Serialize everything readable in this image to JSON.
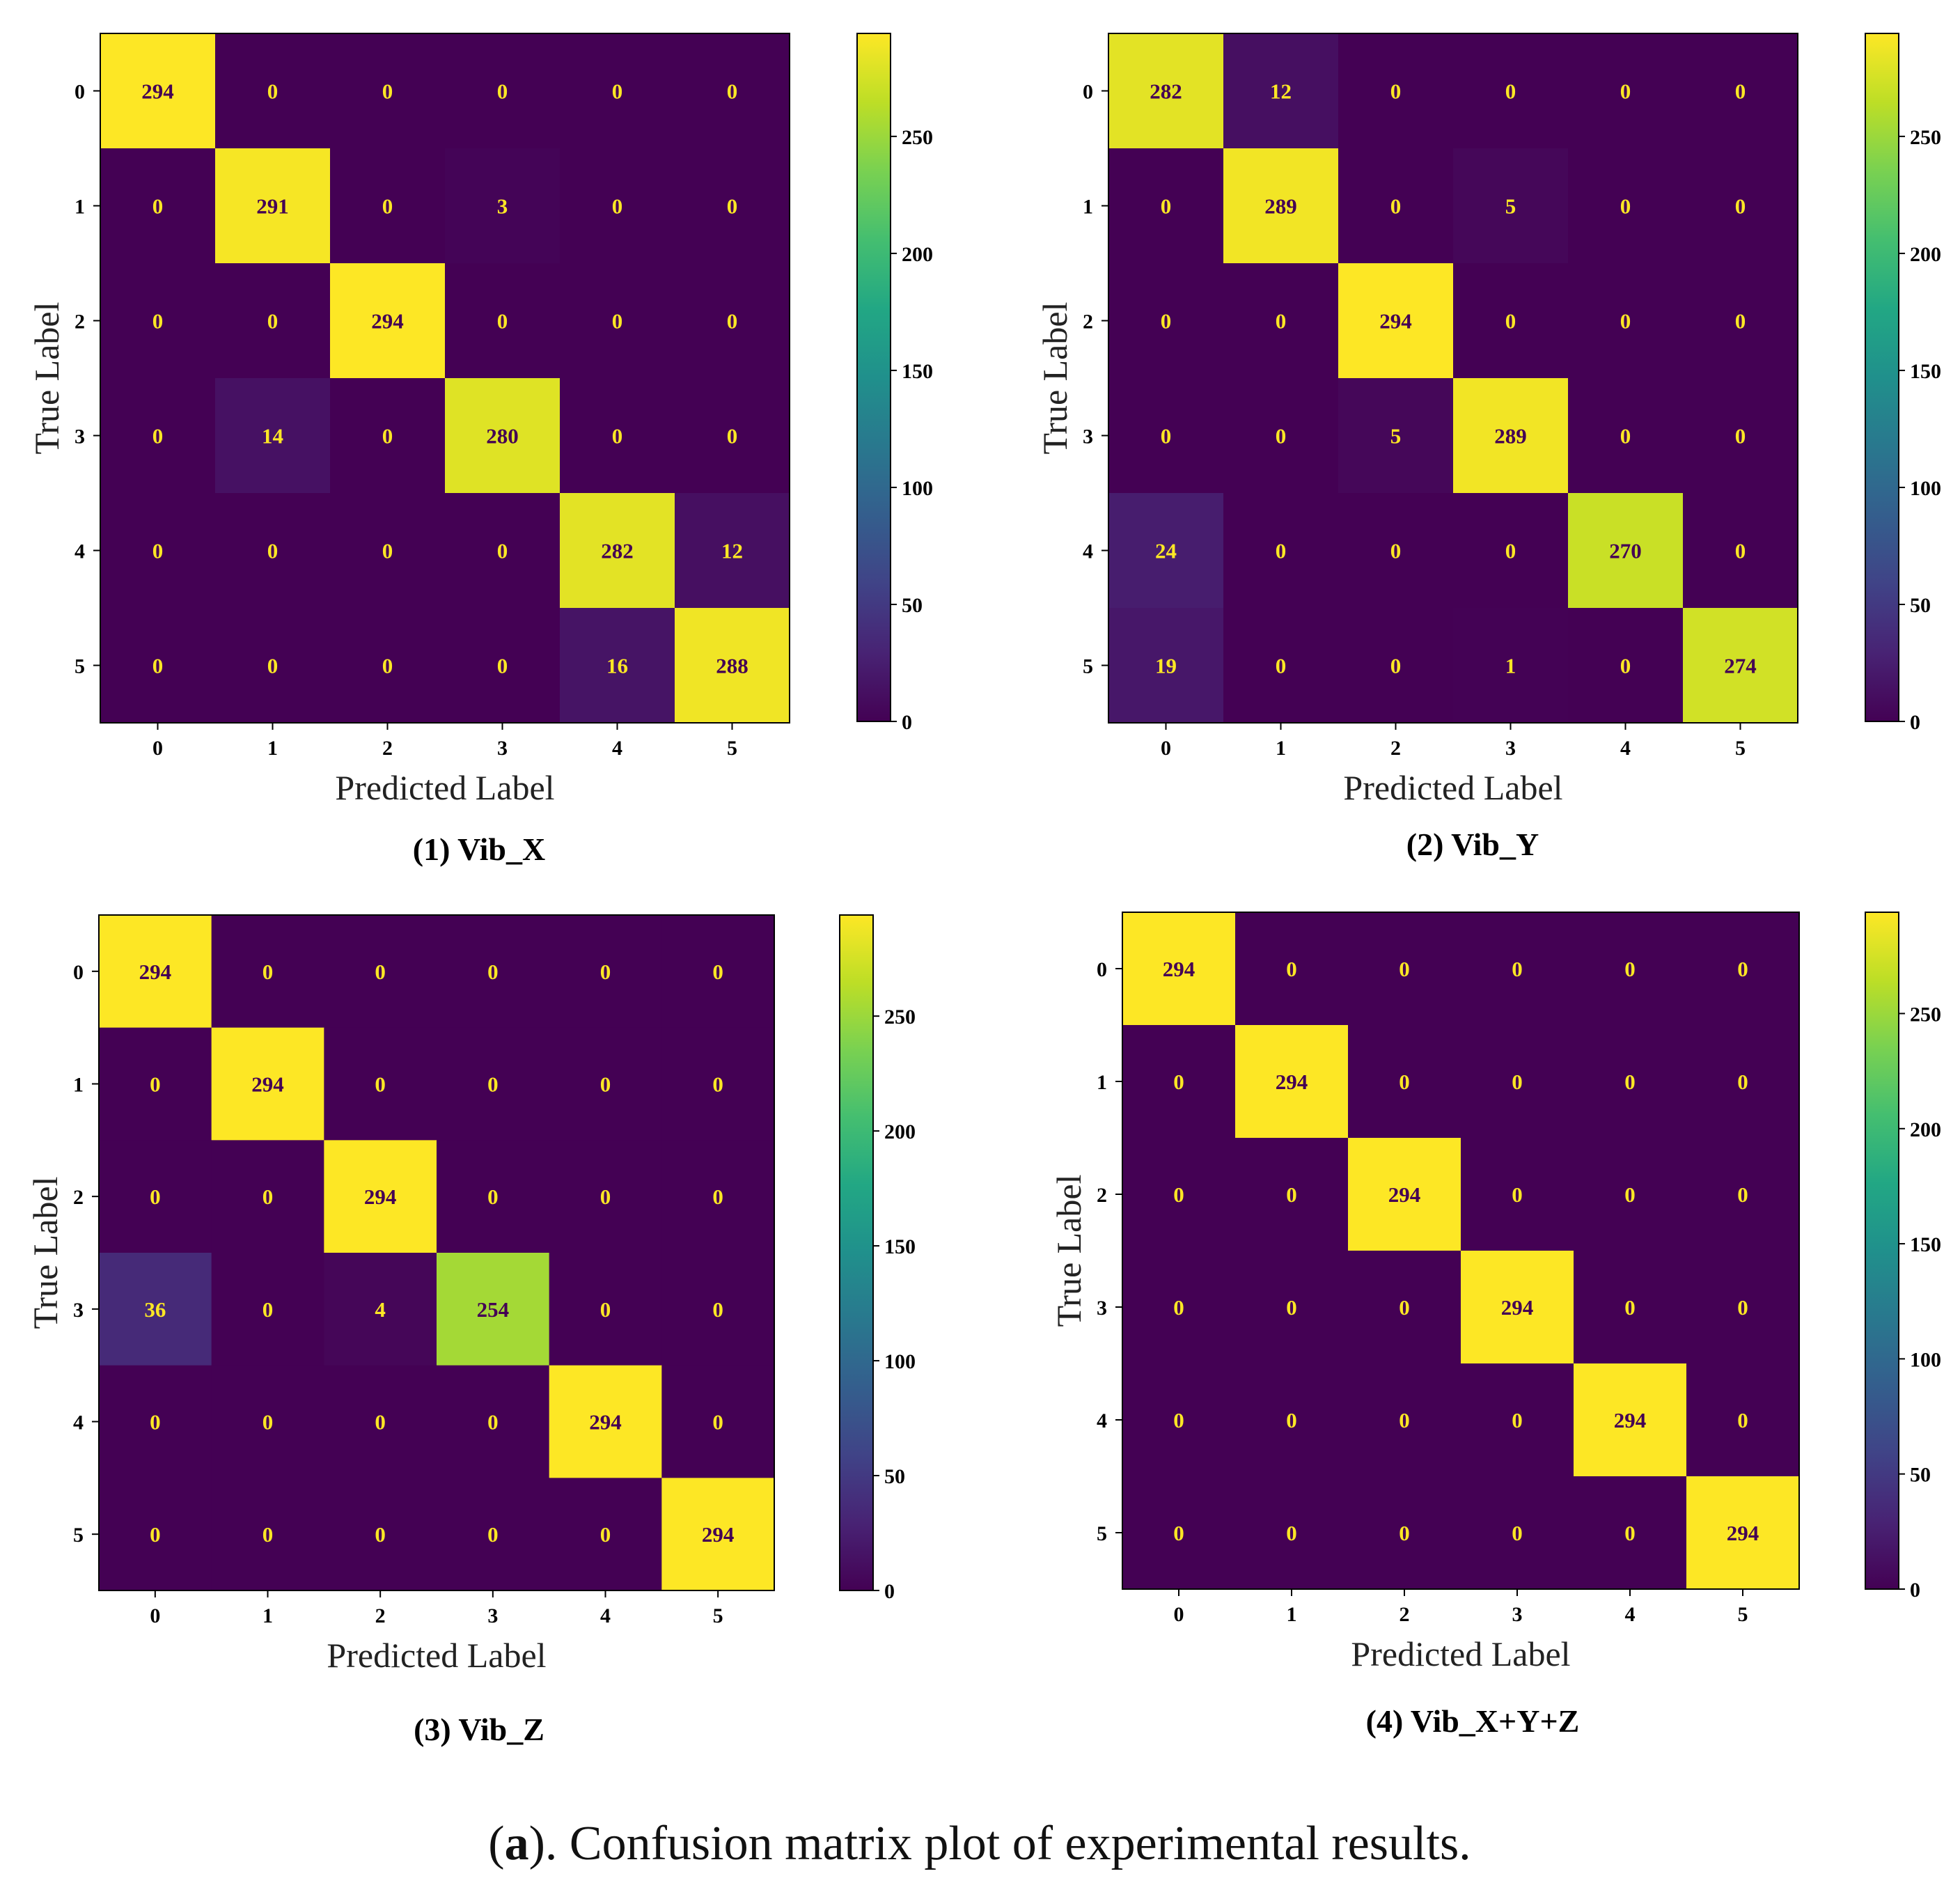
{
  "chart_data": [
    {
      "type": "heatmap",
      "title": "(1) Vib_X",
      "xlabel": "Predicted Label",
      "ylabel": "True Label",
      "x_ticks": [
        "0",
        "1",
        "2",
        "3",
        "4",
        "5"
      ],
      "y_ticks": [
        "0",
        "1",
        "2",
        "3",
        "4",
        "5"
      ],
      "colorbar_ticks": [
        0,
        50,
        100,
        150,
        200,
        250
      ],
      "vmin": 0,
      "vmax": 294,
      "matrix": [
        [
          294,
          0,
          0,
          0,
          0,
          0
        ],
        [
          0,
          291,
          0,
          3,
          0,
          0
        ],
        [
          0,
          0,
          294,
          0,
          0,
          0
        ],
        [
          0,
          14,
          0,
          280,
          0,
          0
        ],
        [
          0,
          0,
          0,
          0,
          282,
          12
        ],
        [
          0,
          0,
          0,
          0,
          16,
          288
        ]
      ]
    },
    {
      "type": "heatmap",
      "title": "(2) Vib_Y",
      "xlabel": "Predicted Label",
      "ylabel": "True Label",
      "x_ticks": [
        "0",
        "1",
        "2",
        "3",
        "4",
        "5"
      ],
      "y_ticks": [
        "0",
        "1",
        "2",
        "3",
        "4",
        "5"
      ],
      "colorbar_ticks": [
        0,
        50,
        100,
        150,
        200,
        250
      ],
      "vmin": 0,
      "vmax": 294,
      "matrix": [
        [
          282,
          12,
          0,
          0,
          0,
          0
        ],
        [
          0,
          289,
          0,
          5,
          0,
          0
        ],
        [
          0,
          0,
          294,
          0,
          0,
          0
        ],
        [
          0,
          0,
          5,
          289,
          0,
          0
        ],
        [
          24,
          0,
          0,
          0,
          270,
          0
        ],
        [
          19,
          0,
          0,
          1,
          0,
          274
        ]
      ]
    },
    {
      "type": "heatmap",
      "title": "(3) Vib_Z",
      "xlabel": "Predicted Label",
      "ylabel": "True Label",
      "x_ticks": [
        "0",
        "1",
        "2",
        "3",
        "4",
        "5"
      ],
      "y_ticks": [
        "0",
        "1",
        "2",
        "3",
        "4",
        "5"
      ],
      "colorbar_ticks": [
        0,
        50,
        100,
        150,
        200,
        250
      ],
      "vmin": 0,
      "vmax": 294,
      "matrix": [
        [
          294,
          0,
          0,
          0,
          0,
          0
        ],
        [
          0,
          294,
          0,
          0,
          0,
          0
        ],
        [
          0,
          0,
          294,
          0,
          0,
          0
        ],
        [
          36,
          0,
          4,
          254,
          0,
          0
        ],
        [
          0,
          0,
          0,
          0,
          294,
          0
        ],
        [
          0,
          0,
          0,
          0,
          0,
          294
        ]
      ]
    },
    {
      "type": "heatmap",
      "title": "(4) Vib_X+Y+Z",
      "xlabel": "Predicted Label",
      "ylabel": "True Label",
      "x_ticks": [
        "0",
        "1",
        "2",
        "3",
        "4",
        "5"
      ],
      "y_ticks": [
        "0",
        "1",
        "2",
        "3",
        "4",
        "5"
      ],
      "colorbar_ticks": [
        0,
        50,
        100,
        150,
        200,
        250
      ],
      "vmin": 0,
      "vmax": 294,
      "matrix": [
        [
          294,
          0,
          0,
          0,
          0,
          0
        ],
        [
          0,
          294,
          0,
          0,
          0,
          0
        ],
        [
          0,
          0,
          294,
          0,
          0,
          0
        ],
        [
          0,
          0,
          0,
          294,
          0,
          0
        ],
        [
          0,
          0,
          0,
          0,
          294,
          0
        ],
        [
          0,
          0,
          0,
          0,
          0,
          294
        ]
      ]
    }
  ],
  "figure": {
    "caption_prefix": "(",
    "caption_letter": "a",
    "caption_rest": "). Confusion matrix plot of experimental results."
  },
  "colors": {
    "cmap": "viridis",
    "text_on_low": "#fde725",
    "text_on_high": "#440154"
  }
}
